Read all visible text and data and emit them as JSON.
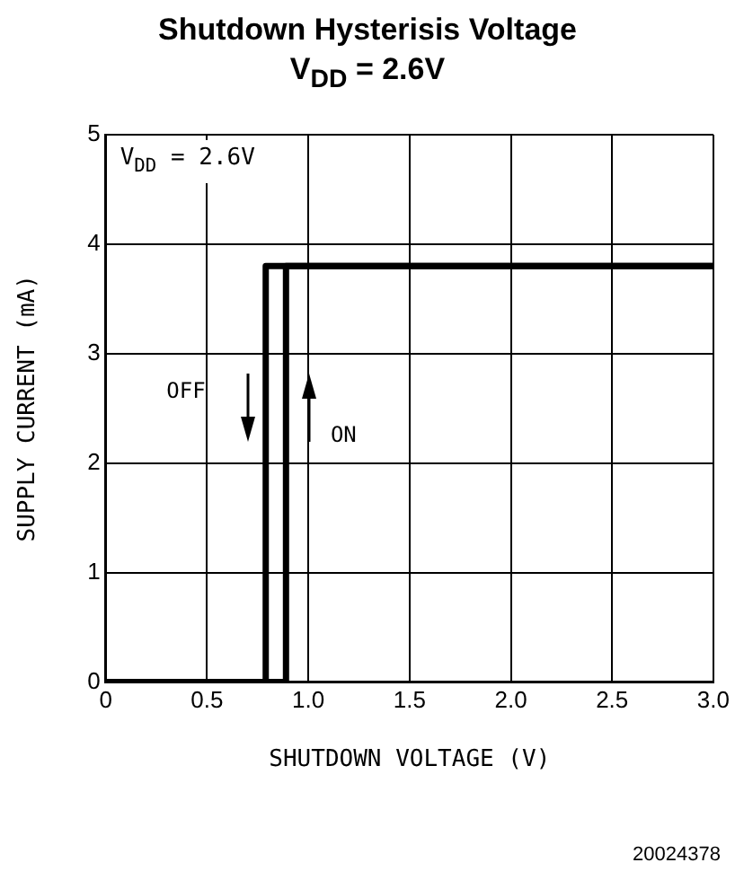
{
  "chart_data": {
    "type": "line",
    "title": "Shutdown Hysterisis Voltage",
    "subtitle": "V$_{DD}$ = 2.6V",
    "xlabel": "SHUTDOWN VOLTAGE (V)",
    "ylabel": "SUPPLY CURRENT (mA)",
    "series": [
      {
        "x": [
          0,
          0.79,
          0.79,
          3
        ],
        "values": [
          0,
          0,
          3.8,
          3.8
        ],
        "color": "#000000"
      },
      {
        "x": [
          0,
          0.89,
          0.89,
          3
        ],
        "values": [
          0,
          0,
          3.8,
          3.8
        ],
        "color": "#000000"
      }
    ],
    "xlim": [
      0,
      3
    ],
    "xticks": [
      0,
      0.5,
      {
        "value": 1,
        "label": "1.0"
      },
      1.5,
      {
        "value": 2,
        "label": "2.0"
      },
      2.5,
      {
        "value": 3,
        "label": "3.0"
      }
    ],
    "ylim": [
      0,
      5
    ],
    "yticks": [
      0,
      1,
      2,
      3,
      4,
      5
    ],
    "grid": true,
    "legend": false,
    "marker": "none",
    "line_style": "solid",
    "annotations": [
      "V$_{DD}$ = 2.6V",
      "OFF",
      "ON",
      "20024378"
    ]
  }
}
